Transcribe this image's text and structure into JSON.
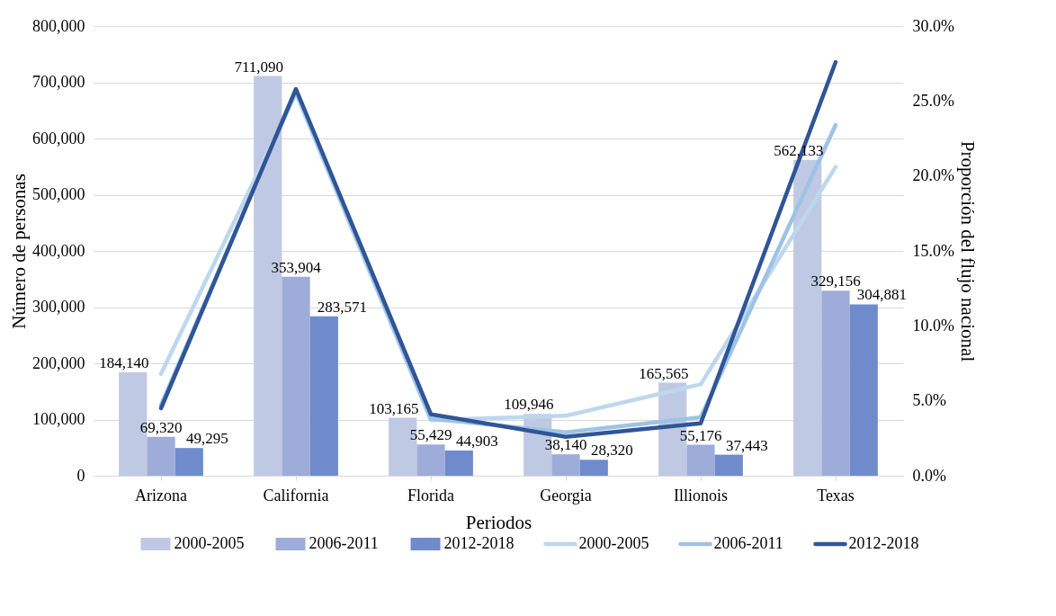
{
  "chart_data": {
    "type": "bar",
    "xlabel": "Periodos",
    "ylabel": "Número de personas",
    "y2label": "Proporción del flujo nacional",
    "categories": [
      "Arizona",
      "California",
      "Florida",
      "Georgia",
      "Illionois",
      "Texas"
    ],
    "series": [
      {
        "name": "2000-2005",
        "type": "bar",
        "color": "#c0c9e4",
        "values": [
          184140,
          711090,
          103165,
          109946,
          165565,
          562133
        ],
        "value_labels": [
          "184,140",
          "711,090",
          "103,165",
          "109,946",
          "165,565",
          "562,133"
        ]
      },
      {
        "name": "2006-2011",
        "type": "bar",
        "color": "#9eacd9",
        "values": [
          69320,
          353904,
          55429,
          38140,
          55176,
          329156
        ],
        "value_labels": [
          "69,320",
          "353,904",
          "55,429",
          "38,140",
          "55,176",
          "329,156"
        ]
      },
      {
        "name": "2012-2018",
        "type": "bar",
        "color": "#6f8bcc",
        "values": [
          49295,
          283571,
          44903,
          28320,
          37443,
          304881
        ],
        "value_labels": [
          "49,295",
          "283,571",
          "44,903",
          "28,320",
          "37,443",
          "304,881"
        ]
      },
      {
        "name": "2000-2005",
        "type": "line",
        "axis": "y2",
        "color": "#bdd7ee",
        "values": [
          6.8,
          25.5,
          3.7,
          4.0,
          6.1,
          20.6
        ]
      },
      {
        "name": "2006-2011",
        "type": "line",
        "axis": "y2",
        "color": "#9dc3e6",
        "values": [
          4.7,
          25.7,
          3.8,
          2.9,
          3.9,
          23.4
        ]
      },
      {
        "name": "2012-2018",
        "type": "line",
        "axis": "y2",
        "color": "#2f5597",
        "values": [
          4.5,
          25.8,
          4.1,
          2.6,
          3.5,
          27.6
        ]
      }
    ],
    "ylim": [
      0,
      800000
    ],
    "yticks": [
      {
        "value": 0,
        "label": "0"
      },
      {
        "value": 100000,
        "label": "100,000"
      },
      {
        "value": 200000,
        "label": "200,000"
      },
      {
        "value": 300000,
        "label": "300,000"
      },
      {
        "value": 400000,
        "label": "400,000"
      },
      {
        "value": 500000,
        "label": "500,000"
      },
      {
        "value": 600000,
        "label": "600,000"
      },
      {
        "value": 700000,
        "label": "700,000"
      },
      {
        "value": 800000,
        "label": "800,000"
      }
    ],
    "y2lim": [
      0,
      30
    ],
    "y2ticks": [
      {
        "value": 0,
        "label": "0.0%"
      },
      {
        "value": 5,
        "label": "5.0%"
      },
      {
        "value": 10,
        "label": "10.0%"
      },
      {
        "value": 15,
        "label": "15.0%"
      },
      {
        "value": 20,
        "label": "20.0%"
      },
      {
        "value": 25,
        "label": "25.0%"
      },
      {
        "value": 30,
        "label": "30.0%"
      }
    ],
    "grid": "y",
    "legend": "bottom",
    "line_style": "solid",
    "marker": "none"
  }
}
